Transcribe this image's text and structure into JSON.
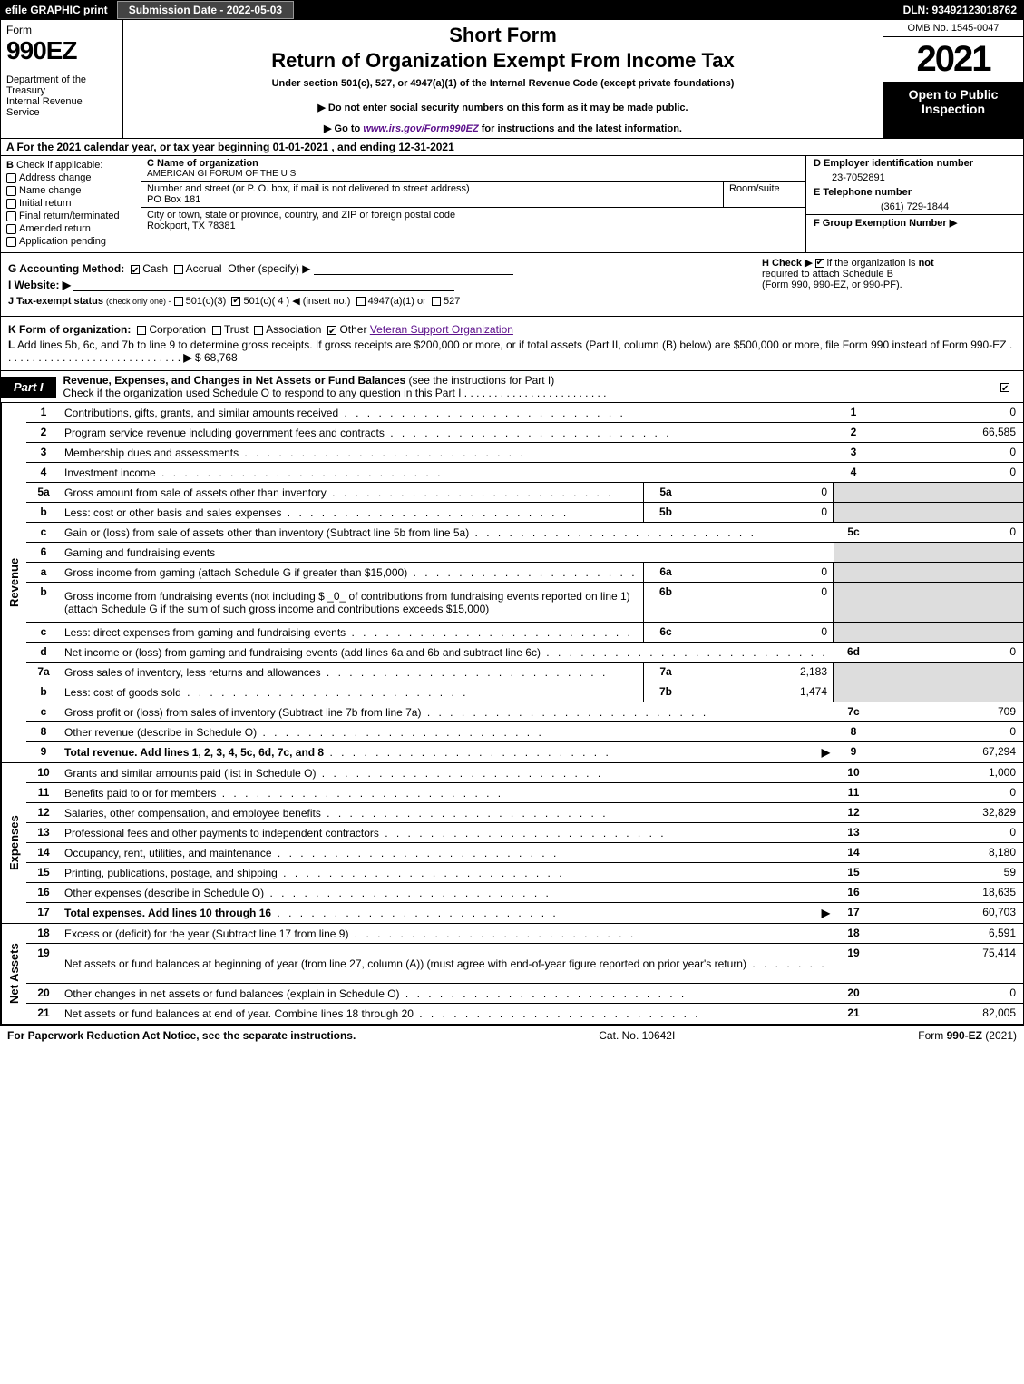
{
  "topbar": {
    "efile": "efile GRAPHIC print",
    "submission": "Submission Date - 2022-05-03",
    "dln": "DLN: 93492123018762"
  },
  "header": {
    "form_word": "Form",
    "form_num": "990EZ",
    "dept": "Department of the Treasury\nInternal Revenue Service",
    "short": "Short Form",
    "ret": "Return of Organization Exempt From Income Tax",
    "under": "Under section 501(c), 527, or 4947(a)(1) of the Internal Revenue Code (except private foundations)",
    "donot": "▶ Do not enter social security numbers on this form as it may be made public.",
    "goto_pre": "▶ Go to ",
    "goto_link": "www.irs.gov/Form990EZ",
    "goto_post": " for instructions and the latest information.",
    "omb": "OMB No. 1545-0047",
    "year": "2021",
    "open": "Open to Public Inspection"
  },
  "line_a": "A  For the 2021 calendar year, or tax year beginning 01-01-2021 , and ending 12-31-2021",
  "section_b": {
    "hdr_b": "B",
    "hdr_txt": "Check if applicable:",
    "opts": [
      "Address change",
      "Name change",
      "Initial return",
      "Final return/terminated",
      "Amended return",
      "Application pending"
    ]
  },
  "section_c": {
    "name_lbl": "C Name of organization",
    "name_val": "AMERICAN GI FORUM OF THE U S",
    "addr_lbl": "Number and street (or P. O. box, if mail is not delivered to street address)",
    "addr_val": "PO Box 181",
    "room_lbl": "Room/suite",
    "city_lbl": "City or town, state or province, country, and ZIP or foreign postal code",
    "city_val": "Rockport, TX  78381"
  },
  "section_d": {
    "ein_lbl": "D Employer identification number",
    "ein_val": "23-7052891",
    "tel_lbl": "E Telephone number",
    "tel_val": "(361) 729-1844",
    "grp_lbl": "F Group Exemption Number  ▶"
  },
  "gh": {
    "g_lbl": "G Accounting Method:",
    "g_cash": "Cash",
    "g_acc": "Accrual",
    "g_oth": "Other (specify) ▶",
    "i_lbl": "I Website: ▶",
    "j_lbl": "J Tax-exempt status",
    "j_sub": "(check only one) -",
    "j1": "501(c)(3)",
    "j2": "501(c)( 4 ) ◀ (insert no.)",
    "j3": "4947(a)(1) or",
    "j4": "527",
    "h_lbl": "H  Check ▶",
    "h_txt1": "if the organization is ",
    "h_not": "not",
    "h_txt2": " required to attach Schedule B",
    "h_txt3": "(Form 990, 990-EZ, or 990-PF)."
  },
  "kl": {
    "k_lbl": "K Form of organization:",
    "k_corp": "Corporation",
    "k_trust": "Trust",
    "k_assoc": "Association",
    "k_other": "Other",
    "k_other_val": "Veteran Support Organization",
    "l_lbl": "L",
    "l_txt": "Add lines 5b, 6c, and 7b to line 9 to determine gross receipts. If gross receipts are $200,000 or more, or if total assets (Part II, column (B) below) are $500,000 or more, file Form 990 instead of Form 990-EZ",
    "l_arrow": "▶",
    "l_amt": "$ 68,768"
  },
  "part1": {
    "tag": "Part I",
    "title": "Revenue, Expenses, and Changes in Net Assets or Fund Balances",
    "inst": "(see the instructions for Part I)",
    "sub": "Check if the organization used Schedule O to respond to any question in this Part I"
  },
  "side_labels": {
    "rev": "Revenue",
    "exp": "Expenses",
    "net": "Net Assets"
  },
  "rows": [
    {
      "n": "1",
      "d": "Contributions, gifts, grants, and similar amounts received",
      "ln": "1",
      "a": "0"
    },
    {
      "n": "2",
      "d": "Program service revenue including government fees and contracts",
      "ln": "2",
      "a": "66,585"
    },
    {
      "n": "3",
      "d": "Membership dues and assessments",
      "ln": "3",
      "a": "0"
    },
    {
      "n": "4",
      "d": "Investment income",
      "ln": "4",
      "a": "0"
    },
    {
      "n": "5a",
      "d": "Gross amount from sale of assets other than inventory",
      "sn": "5a",
      "sv": "0",
      "shade_ln": true
    },
    {
      "n": "b",
      "d": "Less: cost or other basis and sales expenses",
      "sn": "5b",
      "sv": "0",
      "shade_ln": true
    },
    {
      "n": "c",
      "d": "Gain or (loss) from sale of assets other than inventory (Subtract line 5b from line 5a)",
      "ln": "5c",
      "a": "0"
    },
    {
      "n": "6",
      "d": "Gaming and fundraising events",
      "shade_ln": true,
      "no_amt": true
    },
    {
      "n": "a",
      "d": "Gross income from gaming (attach Schedule G if greater than $15,000)",
      "sn": "6a",
      "sv": "0",
      "shade_ln": true
    },
    {
      "n": "b",
      "d": "Gross income from fundraising events (not including $ _0_ of contributions from fundraising events reported on line 1) (attach Schedule G if the sum of such gross income and contributions exceeds $15,000)",
      "sn": "6b",
      "sv": "0",
      "shade_ln": true,
      "tall": true
    },
    {
      "n": "c",
      "d": "Less: direct expenses from gaming and fundraising events",
      "sn": "6c",
      "sv": "0",
      "shade_ln": true
    },
    {
      "n": "d",
      "d": "Net income or (loss) from gaming and fundraising events (add lines 6a and 6b and subtract line 6c)",
      "ln": "6d",
      "a": "0"
    },
    {
      "n": "7a",
      "d": "Gross sales of inventory, less returns and allowances",
      "sn": "7a",
      "sv": "2,183",
      "shade_ln": true
    },
    {
      "n": "b",
      "d": "Less: cost of goods sold",
      "sn": "7b",
      "sv": "1,474",
      "shade_ln": true
    },
    {
      "n": "c",
      "d": "Gross profit or (loss) from sales of inventory (Subtract line 7b from line 7a)",
      "ln": "7c",
      "a": "709"
    },
    {
      "n": "8",
      "d": "Other revenue (describe in Schedule O)",
      "ln": "8",
      "a": "0"
    },
    {
      "n": "9",
      "d": "Total revenue. Add lines 1, 2, 3, 4, 5c, 6d, 7c, and 8",
      "ln": "9",
      "a": "67,294",
      "bold": true,
      "arr": true
    }
  ],
  "exp_rows": [
    {
      "n": "10",
      "d": "Grants and similar amounts paid (list in Schedule O)",
      "ln": "10",
      "a": "1,000"
    },
    {
      "n": "11",
      "d": "Benefits paid to or for members",
      "ln": "11",
      "a": "0"
    },
    {
      "n": "12",
      "d": "Salaries, other compensation, and employee benefits",
      "ln": "12",
      "a": "32,829"
    },
    {
      "n": "13",
      "d": "Professional fees and other payments to independent contractors",
      "ln": "13",
      "a": "0"
    },
    {
      "n": "14",
      "d": "Occupancy, rent, utilities, and maintenance",
      "ln": "14",
      "a": "8,180"
    },
    {
      "n": "15",
      "d": "Printing, publications, postage, and shipping",
      "ln": "15",
      "a": "59"
    },
    {
      "n": "16",
      "d": "Other expenses (describe in Schedule O)",
      "ln": "16",
      "a": "18,635"
    },
    {
      "n": "17",
      "d": "Total expenses. Add lines 10 through 16",
      "ln": "17",
      "a": "60,703",
      "bold": true,
      "arr": true
    }
  ],
  "net_rows": [
    {
      "n": "18",
      "d": "Excess or (deficit) for the year (Subtract line 17 from line 9)",
      "ln": "18",
      "a": "6,591"
    },
    {
      "n": "19",
      "d": "Net assets or fund balances at beginning of year (from line 27, column (A)) (must agree with end-of-year figure reported on prior year's return)",
      "ln": "19",
      "a": "75,414",
      "tall": true,
      "shade_top": true
    },
    {
      "n": "20",
      "d": "Other changes in net assets or fund balances (explain in Schedule O)",
      "ln": "20",
      "a": "0"
    },
    {
      "n": "21",
      "d": "Net assets or fund balances at end of year. Combine lines 18 through 20",
      "ln": "21",
      "a": "82,005"
    }
  ],
  "footer": {
    "l": "For Paperwork Reduction Act Notice, see the separate instructions.",
    "m": "Cat. No. 10642I",
    "r_pre": "Form ",
    "r_b": "990-EZ",
    "r_post": " (2021)"
  },
  "style": {
    "bg": "#ffffff",
    "fg": "#000000",
    "shade": "#dddddd",
    "link": "#5b0f8b"
  }
}
